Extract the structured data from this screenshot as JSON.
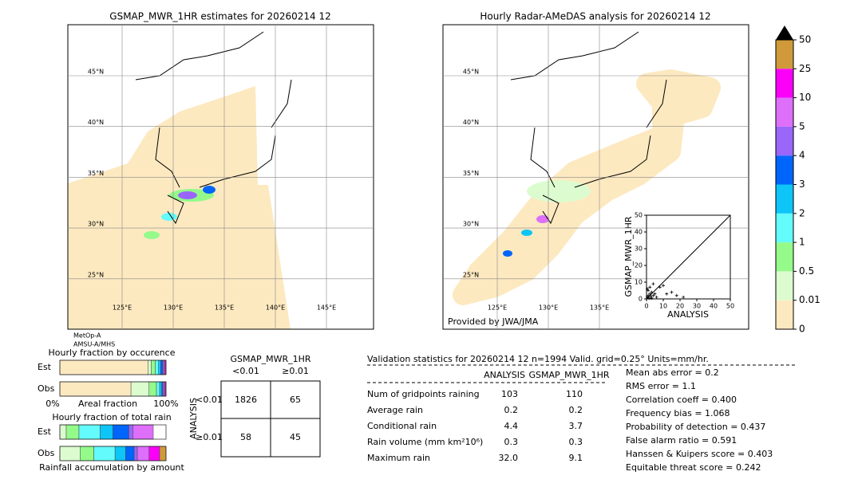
{
  "left_map": {
    "title": "GSMAP_MWR_1HR estimates for 20260214 12",
    "lat_labels": [
      "45°N",
      "40°N",
      "35°N",
      "30°N",
      "25°N"
    ],
    "lon_labels": [
      "125°E",
      "130°E",
      "135°E",
      "140°E",
      "145°E"
    ],
    "sensors": [
      "MetOp-A",
      "AMSU-A/MHS"
    ]
  },
  "right_map": {
    "title": "Hourly Radar-AMeDAS analysis for 20260214 12",
    "lat_labels": [
      "45°N",
      "40°N",
      "35°N",
      "30°N",
      "25°N"
    ],
    "lon_labels": [
      "125°E",
      "130°E",
      "135°E"
    ],
    "credit": "Provided by JWA/JMA"
  },
  "colorbar": {
    "levels": [
      0,
      0.01,
      0.5,
      1,
      2,
      3,
      4,
      5,
      10,
      25,
      50
    ],
    "colors": [
      "#fde9c0",
      "#dcfcd0",
      "#94fa8a",
      "#63fbfb",
      "#0dc5f7",
      "#0065fb",
      "#9966fa",
      "#dd6ffa",
      "#fb00f9",
      "#d09a3a"
    ]
  },
  "chart_data": {
    "type": "scatter",
    "xlabel": "ANALYSIS",
    "ylabel": "GSMAP_MWR_1HR",
    "xlim": [
      0,
      50
    ],
    "ylim": [
      0,
      50
    ],
    "xticks": [
      0,
      10,
      20,
      30,
      40,
      50
    ],
    "yticks": [
      0,
      10,
      20,
      30,
      40,
      50
    ],
    "x": [
      0.5,
      1,
      1.5,
      2,
      2.5,
      3,
      1,
      0.5,
      4,
      5,
      6,
      8,
      10,
      12,
      15,
      18,
      22,
      4,
      2,
      3
    ],
    "y": [
      1,
      2,
      0.5,
      3,
      1.5,
      4,
      5,
      6,
      2,
      3,
      1,
      7,
      8,
      3,
      4,
      2,
      1,
      9,
      7,
      0.5
    ]
  },
  "occurrence": {
    "title": "Hourly fraction by occurence",
    "rows": [
      "Est",
      "Obs"
    ],
    "axis_labels": [
      "0%",
      "Areal fraction",
      "100%"
    ],
    "segments": [
      [
        0.83,
        0.03,
        0.04,
        0.03,
        0.02,
        0.02,
        0.01,
        0.01,
        0.01
      ],
      [
        0.67,
        0.17,
        0.07,
        0.03,
        0.02,
        0.01,
        0.01,
        0.01,
        0.01
      ]
    ]
  },
  "amount": {
    "title": "Hourly fraction of total rain",
    "rows": [
      "Est",
      "Obs"
    ],
    "xlabel": "Rainfall accumulation by amount",
    "segments": [
      [
        0,
        0.06,
        0.12,
        0.2,
        0.12,
        0.15,
        0.04,
        0.19,
        0,
        0
      ],
      [
        0,
        0.19,
        0.13,
        0.2,
        0.1,
        0.08,
        0.03,
        0.11,
        0.1,
        0.06
      ]
    ]
  },
  "contingency": {
    "title": "GSMAP_MWR_1HR",
    "col_headers": [
      "<0.01",
      "≥0.01"
    ],
    "row_label": "ANALYSIS",
    "row_headers": [
      "<0.01",
      "≥0.01"
    ],
    "cells": [
      [
        "1826",
        "65"
      ],
      [
        "58",
        "45"
      ]
    ]
  },
  "validation": {
    "header": "Validation statistics for 20260214 12  n=1994 Valid. grid=0.25° Units=mm/hr.",
    "columns": [
      "ANALYSIS",
      "GSMAP_MWR_1HR"
    ],
    "rows": [
      {
        "label": "Num of gridpoints raining",
        "values": [
          "103",
          "110"
        ]
      },
      {
        "label": "Average rain",
        "values": [
          "0.2",
          "0.2"
        ]
      },
      {
        "label": "Conditional rain",
        "values": [
          "4.4",
          "3.7"
        ]
      },
      {
        "label": "Rain volume (mm km²10⁶)",
        "values": [
          "0.3",
          "0.3"
        ]
      },
      {
        "label": "Maximum rain",
        "values": [
          "32.0",
          "9.1"
        ]
      }
    ],
    "scores": [
      "Mean abs error =    0.2",
      "RMS error =    1.1",
      "Correlation coeff =  0.400",
      "Frequency bias =  1.068",
      "Probability of detection =  0.437",
      "False alarm ratio =  0.591",
      "Hanssen & Kuipers score =  0.403",
      "Equitable threat score =  0.242"
    ]
  }
}
